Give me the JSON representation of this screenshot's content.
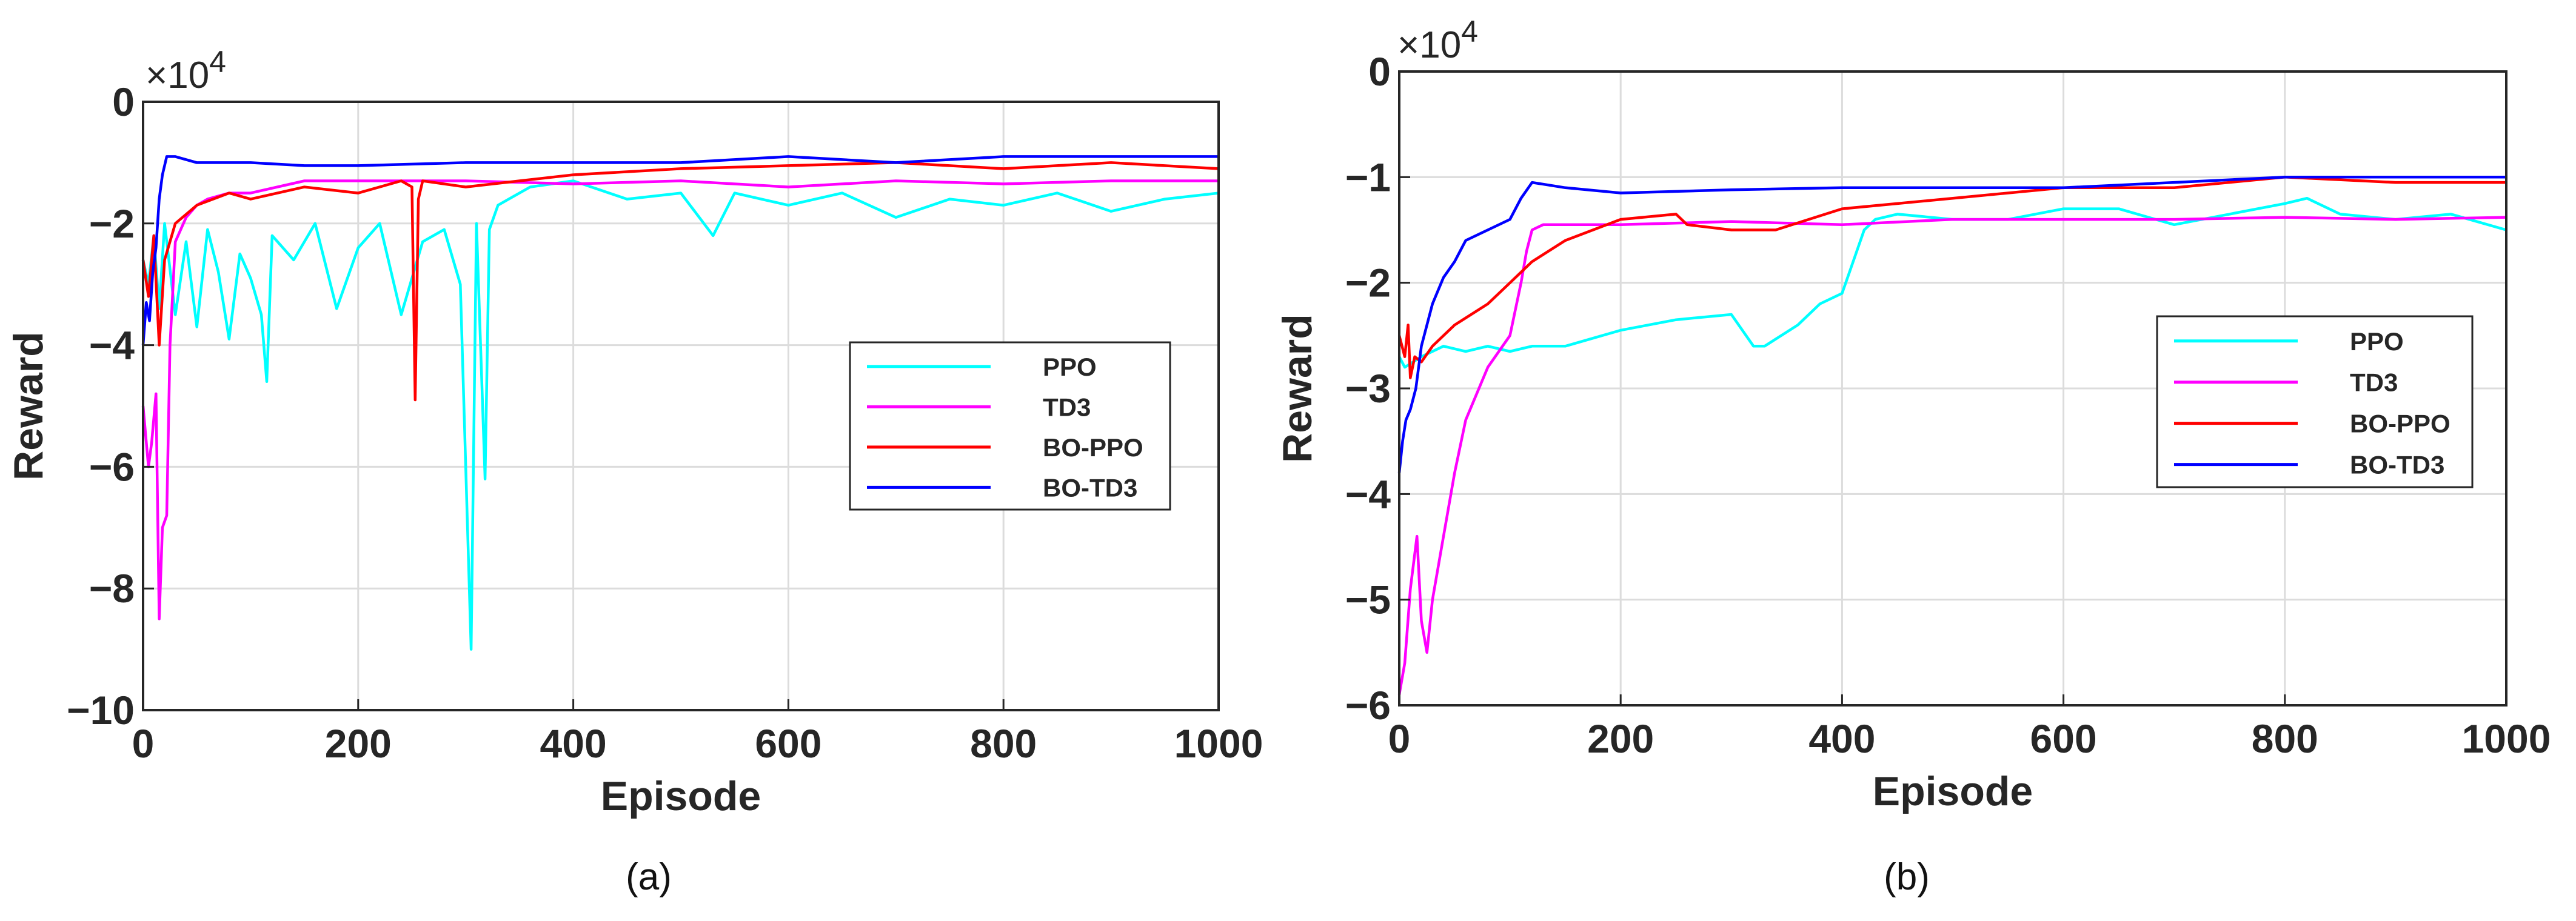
{
  "chart_data": [
    {
      "type": "line",
      "panel_label": "(a)",
      "title": "",
      "xlabel": "Episode",
      "ylabel": "Reward",
      "exponent_label": "×10",
      "exponent_power": "4",
      "xlim": [
        0,
        1000
      ],
      "ylim": [
        -10,
        0
      ],
      "xticks": [
        0,
        200,
        400,
        600,
        800,
        1000
      ],
      "xtick_labels": [
        "0",
        "200",
        "400",
        "600",
        "800",
        "1000"
      ],
      "yticks": [
        -10,
        -8,
        -6,
        -4,
        -2,
        0
      ],
      "ytick_labels": [
        "−10",
        "−8",
        "−6",
        "−4",
        "−2",
        "0"
      ],
      "grid": true,
      "legend_position": "center-right",
      "series": [
        {
          "name": "PPO",
          "color": "#00ffff",
          "x": [
            0,
            5,
            10,
            15,
            20,
            30,
            40,
            50,
            60,
            70,
            80,
            90,
            100,
            110,
            115,
            120,
            140,
            160,
            180,
            200,
            220,
            240,
            260,
            280,
            295,
            300,
            305,
            310,
            318,
            322,
            330,
            340,
            360,
            400,
            450,
            500,
            530,
            550,
            600,
            650,
            700,
            750,
            800,
            850,
            900,
            950,
            1000
          ],
          "y": [
            -2.6,
            -3.0,
            -2.2,
            -3.4,
            -2.0,
            -3.5,
            -2.3,
            -3.7,
            -2.1,
            -2.8,
            -3.9,
            -2.5,
            -2.9,
            -3.5,
            -4.6,
            -2.2,
            -2.6,
            -2.0,
            -3.4,
            -2.4,
            -2.0,
            -3.5,
            -2.3,
            -2.1,
            -3.0,
            -6.0,
            -9.0,
            -2.0,
            -6.2,
            -2.1,
            -1.7,
            -1.6,
            -1.4,
            -1.3,
            -1.6,
            -1.5,
            -2.2,
            -1.5,
            -1.7,
            -1.5,
            -1.9,
            -1.6,
            -1.7,
            -1.5,
            -1.8,
            -1.6,
            -1.5
          ]
        },
        {
          "name": "TD3",
          "color": "#ff00ff",
          "x": [
            0,
            5,
            8,
            12,
            15,
            18,
            22,
            25,
            30,
            40,
            50,
            60,
            80,
            100,
            150,
            200,
            250,
            300,
            400,
            500,
            600,
            700,
            800,
            900,
            1000
          ],
          "y": [
            -5.0,
            -6.0,
            -5.6,
            -4.8,
            -8.5,
            -7.0,
            -6.8,
            -4.0,
            -2.3,
            -1.9,
            -1.7,
            -1.6,
            -1.5,
            -1.5,
            -1.3,
            -1.3,
            -1.3,
            -1.3,
            -1.35,
            -1.3,
            -1.4,
            -1.3,
            -1.35,
            -1.3,
            -1.3
          ]
        },
        {
          "name": "BO-PPO",
          "color": "#ff0000",
          "x": [
            0,
            5,
            10,
            15,
            20,
            30,
            50,
            80,
            100,
            150,
            200,
            240,
            250,
            253,
            256,
            260,
            300,
            350,
            400,
            500,
            600,
            700,
            800,
            900,
            1000
          ],
          "y": [
            -2.6,
            -3.2,
            -2.2,
            -4.0,
            -2.6,
            -2.0,
            -1.7,
            -1.5,
            -1.6,
            -1.4,
            -1.5,
            -1.3,
            -1.4,
            -4.9,
            -1.6,
            -1.3,
            -1.4,
            -1.3,
            -1.2,
            -1.1,
            -1.05,
            -1.0,
            -1.1,
            -1.0,
            -1.1
          ]
        },
        {
          "name": "BO-TD3",
          "color": "#0000ff",
          "x": [
            0,
            3,
            6,
            9,
            12,
            15,
            18,
            22,
            30,
            50,
            100,
            150,
            200,
            300,
            400,
            500,
            600,
            700,
            800,
            900,
            1000
          ],
          "y": [
            -4.0,
            -3.3,
            -3.6,
            -2.8,
            -2.4,
            -1.6,
            -1.2,
            -0.9,
            -0.9,
            -1.0,
            -1.0,
            -1.05,
            -1.05,
            -1.0,
            -1.0,
            -1.0,
            -0.9,
            -1.0,
            -0.9,
            -0.9,
            -0.9
          ]
        }
      ]
    },
    {
      "type": "line",
      "panel_label": "(b)",
      "title": "",
      "xlabel": "Episode",
      "ylabel": "Reward",
      "exponent_label": "×10",
      "exponent_power": "4",
      "xlim": [
        0,
        1000
      ],
      "ylim": [
        -6,
        0
      ],
      "xticks": [
        0,
        200,
        400,
        600,
        800,
        1000
      ],
      "xtick_labels": [
        "0",
        "200",
        "400",
        "600",
        "800",
        "1000"
      ],
      "yticks": [
        -6,
        -5,
        -4,
        -3,
        -2,
        -1,
        0
      ],
      "ytick_labels": [
        "−6",
        "−5",
        "−4",
        "−3",
        "−2",
        "−1",
        "0"
      ],
      "grid": true,
      "legend_position": "center-right",
      "series": [
        {
          "name": "PPO",
          "color": "#00ffff",
          "x": [
            0,
            5,
            20,
            40,
            60,
            80,
            100,
            120,
            150,
            200,
            250,
            300,
            320,
            330,
            360,
            380,
            400,
            410,
            420,
            430,
            450,
            500,
            550,
            600,
            650,
            700,
            750,
            800,
            820,
            850,
            900,
            950,
            1000
          ],
          "y": [
            -2.7,
            -2.8,
            -2.7,
            -2.6,
            -2.65,
            -2.6,
            -2.65,
            -2.6,
            -2.6,
            -2.45,
            -2.35,
            -2.3,
            -2.6,
            -2.6,
            -2.4,
            -2.2,
            -2.1,
            -1.8,
            -1.5,
            -1.4,
            -1.35,
            -1.4,
            -1.4,
            -1.3,
            -1.3,
            -1.45,
            -1.35,
            -1.25,
            -1.2,
            -1.35,
            -1.4,
            -1.35,
            -1.5
          ]
        },
        {
          "name": "TD3",
          "color": "#ff00ff",
          "x": [
            0,
            5,
            10,
            16,
            20,
            25,
            30,
            40,
            50,
            60,
            80,
            100,
            110,
            115,
            120,
            130,
            150,
            200,
            300,
            400,
            500,
            600,
            700,
            800,
            900,
            1000
          ],
          "y": [
            -5.9,
            -5.6,
            -4.9,
            -4.4,
            -5.2,
            -5.5,
            -5.0,
            -4.4,
            -3.8,
            -3.3,
            -2.8,
            -2.5,
            -2.0,
            -1.7,
            -1.5,
            -1.45,
            -1.45,
            -1.45,
            -1.42,
            -1.45,
            -1.4,
            -1.4,
            -1.4,
            -1.38,
            -1.4,
            -1.38
          ]
        },
        {
          "name": "BO-PPO",
          "color": "#ff0000",
          "x": [
            0,
            5,
            8,
            10,
            14,
            20,
            30,
            50,
            80,
            100,
            120,
            150,
            200,
            250,
            260,
            300,
            340,
            400,
            500,
            600,
            700,
            800,
            900,
            1000
          ],
          "y": [
            -2.5,
            -2.7,
            -2.4,
            -2.9,
            -2.7,
            -2.75,
            -2.6,
            -2.4,
            -2.2,
            -2.0,
            -1.8,
            -1.6,
            -1.4,
            -1.35,
            -1.45,
            -1.5,
            -1.5,
            -1.3,
            -1.2,
            -1.1,
            -1.1,
            -1.0,
            -1.05,
            -1.05
          ]
        },
        {
          "name": "BO-TD3",
          "color": "#0000ff",
          "x": [
            0,
            3,
            6,
            10,
            15,
            20,
            30,
            40,
            50,
            60,
            80,
            100,
            110,
            120,
            150,
            200,
            300,
            400,
            500,
            600,
            700,
            800,
            900,
            1000
          ],
          "y": [
            -3.8,
            -3.5,
            -3.3,
            -3.2,
            -3.0,
            -2.6,
            -2.2,
            -1.95,
            -1.8,
            -1.6,
            -1.5,
            -1.4,
            -1.2,
            -1.05,
            -1.1,
            -1.15,
            -1.12,
            -1.1,
            -1.1,
            -1.1,
            -1.05,
            -1.0,
            -1.0,
            -1.0
          ]
        }
      ]
    }
  ]
}
